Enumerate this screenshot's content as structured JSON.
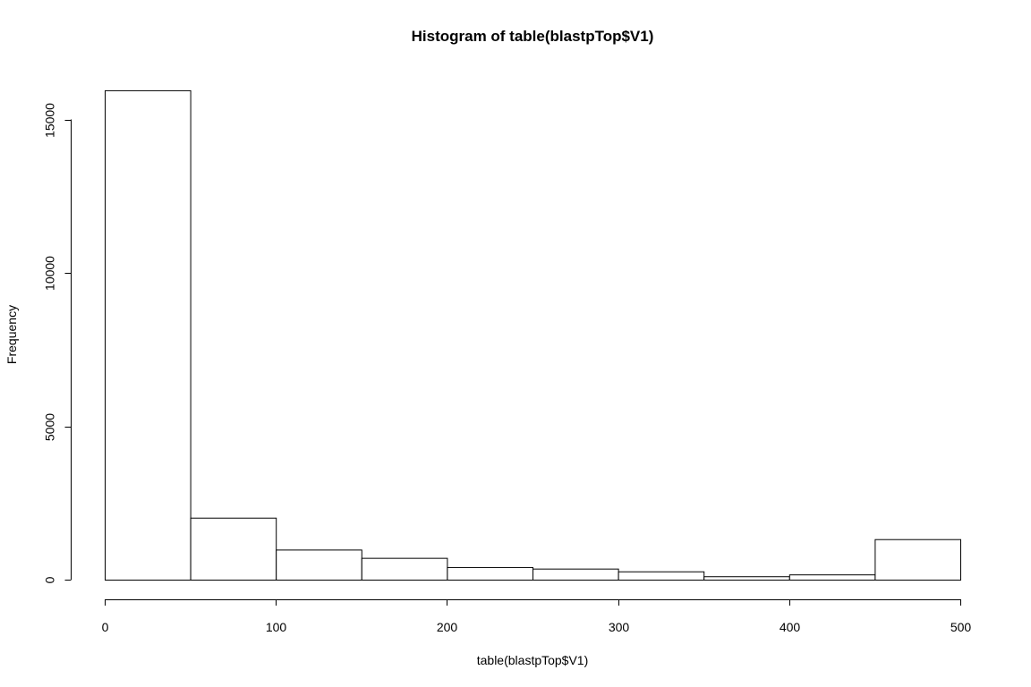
{
  "chart_data": {
    "type": "bar",
    "title": "Histogram of table(blastpTop$V1)",
    "xlabel": "table(blastpTop$V1)",
    "ylabel": "Frequency",
    "xlim": [
      0,
      500
    ],
    "ylim": [
      0,
      16000
    ],
    "bins": [
      {
        "start": 0,
        "end": 50,
        "count": 15950
      },
      {
        "start": 50,
        "end": 100,
        "count": 2020
      },
      {
        "start": 100,
        "end": 150,
        "count": 980
      },
      {
        "start": 150,
        "end": 200,
        "count": 710
      },
      {
        "start": 200,
        "end": 250,
        "count": 410
      },
      {
        "start": 250,
        "end": 300,
        "count": 360
      },
      {
        "start": 300,
        "end": 350,
        "count": 270
      },
      {
        "start": 350,
        "end": 400,
        "count": 110
      },
      {
        "start": 400,
        "end": 450,
        "count": 170
      },
      {
        "start": 450,
        "end": 500,
        "count": 1320
      }
    ],
    "x_ticks": [
      0,
      100,
      200,
      300,
      400,
      500
    ],
    "y_ticks": [
      0,
      5000,
      10000,
      15000
    ],
    "grid": false,
    "legend": "none"
  }
}
